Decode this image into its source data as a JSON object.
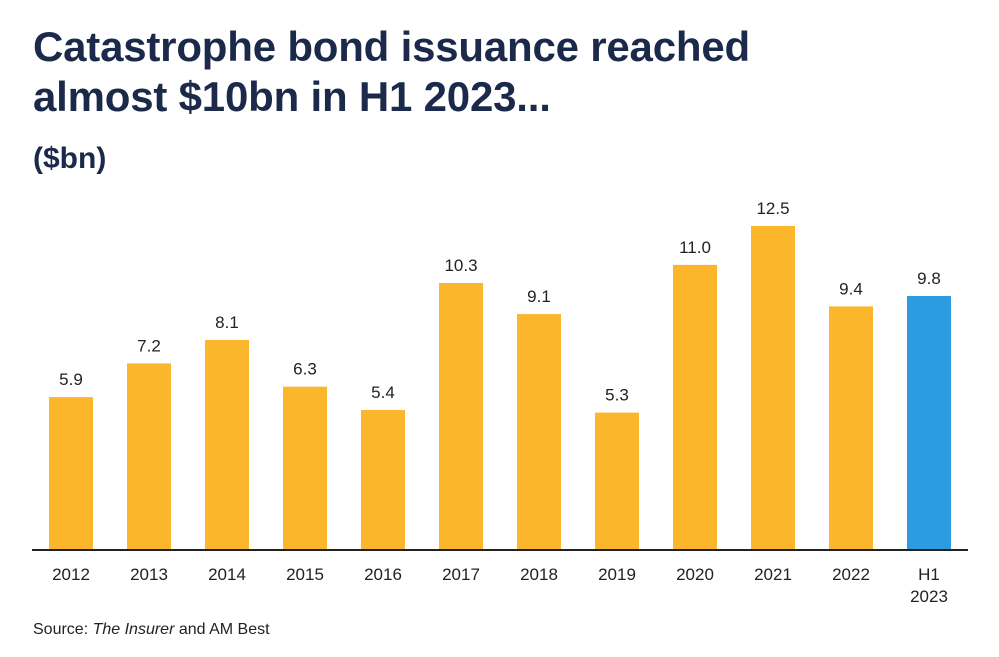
{
  "title_lines": [
    "Catastrophe bond issuance reached",
    "almost $10bn in H1 2023..."
  ],
  "unit_label": "($bn)",
  "source": {
    "prefix": "Source: ",
    "italic": "The Insurer",
    "suffix": " and AM Best"
  },
  "colors": {
    "bar": "#fbb62c",
    "highlight_bar": "#2c9be0",
    "axis": "#222222",
    "title": "#1b2a4a",
    "text": "#222222"
  },
  "chart_data": {
    "type": "bar",
    "categories": [
      "2012",
      "2013",
      "2014",
      "2015",
      "2016",
      "2017",
      "2018",
      "2019",
      "2020",
      "2021",
      "2022",
      "H1 2023"
    ],
    "values": [
      5.9,
      7.2,
      8.1,
      6.3,
      5.4,
      10.3,
      9.1,
      5.3,
      11.0,
      12.5,
      9.4,
      9.8
    ],
    "value_labels": [
      "5.9",
      "7.2",
      "8.1",
      "6.3",
      "5.4",
      "10.3",
      "9.1",
      "5.3",
      "11.0",
      "12.5",
      "9.4",
      "9.8"
    ],
    "highlight_index": 11,
    "ylim": [
      0,
      12.5
    ],
    "grid": false,
    "legend": "none"
  }
}
